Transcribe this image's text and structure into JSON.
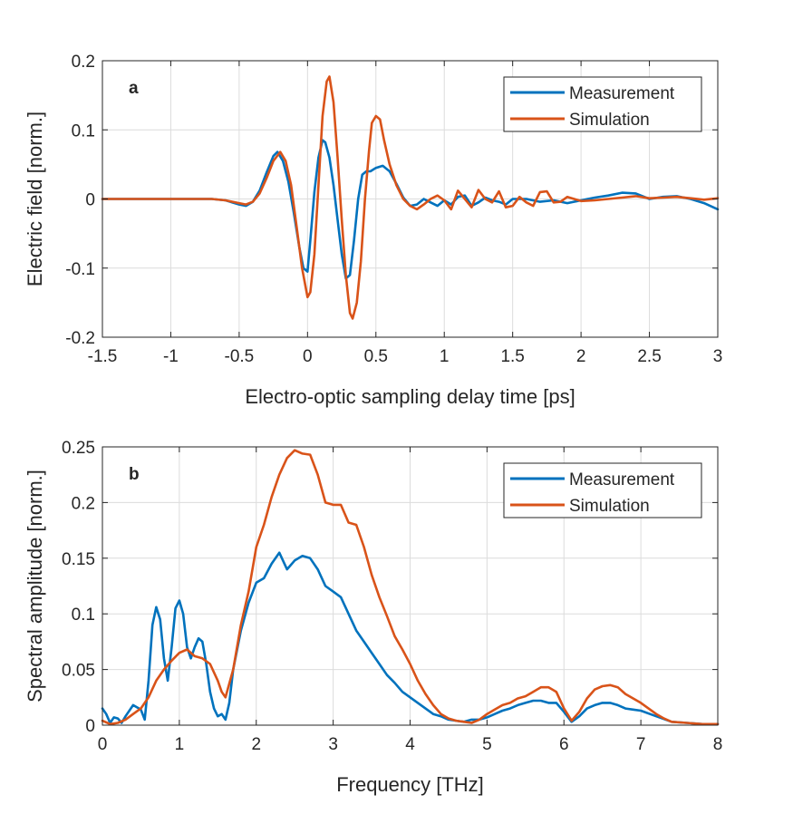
{
  "colors": {
    "measurement": "#0072BD",
    "simulation": "#D95319",
    "grid": "#dcdcdc",
    "axis": "#262626"
  },
  "chart_data": [
    {
      "type": "line",
      "panel_label": "a",
      "xlabel": "Electro-optic sampling delay time [ps]",
      "ylabel": "Electric field [norm.]",
      "xlim": [
        -1.5,
        3
      ],
      "ylim": [
        -0.2,
        0.2
      ],
      "xticks": [
        -1.5,
        -1,
        -0.5,
        0,
        0.5,
        1,
        1.5,
        2,
        2.5,
        3
      ],
      "xtick_labels": [
        "-1.5",
        "-1",
        "-0.5",
        "0",
        "0.5",
        "1",
        "1.5",
        "2",
        "2.5",
        "3"
      ],
      "yticks": [
        -0.2,
        -0.1,
        0,
        0.1,
        0.2
      ],
      "ytick_labels": [
        "-0.2",
        "-0.1",
        "0",
        "0.1",
        "0.2"
      ],
      "grid": true,
      "legend_position": "top-right",
      "series": [
        {
          "name": "Measurement",
          "color": "#0072BD",
          "x": [
            -1.5,
            -1.2,
            -0.9,
            -0.7,
            -0.6,
            -0.5,
            -0.45,
            -0.4,
            -0.35,
            -0.3,
            -0.25,
            -0.22,
            -0.18,
            -0.14,
            -0.1,
            -0.06,
            -0.03,
            0.0,
            0.02,
            0.05,
            0.08,
            0.11,
            0.13,
            0.16,
            0.19,
            0.22,
            0.25,
            0.28,
            0.31,
            0.34,
            0.37,
            0.4,
            0.43,
            0.46,
            0.5,
            0.55,
            0.6,
            0.65,
            0.7,
            0.75,
            0.8,
            0.85,
            0.9,
            0.95,
            1.0,
            1.05,
            1.1,
            1.15,
            1.2,
            1.25,
            1.3,
            1.35,
            1.4,
            1.45,
            1.5,
            1.6,
            1.7,
            1.8,
            1.9,
            2.0,
            2.1,
            2.2,
            2.3,
            2.4,
            2.5,
            2.6,
            2.7,
            2.8,
            2.9,
            3.0
          ],
          "y": [
            0.0,
            0.0,
            0.0,
            0.0,
            -0.002,
            -0.008,
            -0.01,
            -0.004,
            0.012,
            0.038,
            0.062,
            0.068,
            0.055,
            0.025,
            -0.02,
            -0.07,
            -0.1,
            -0.105,
            -0.06,
            0.01,
            0.06,
            0.085,
            0.082,
            0.06,
            0.02,
            -0.03,
            -0.08,
            -0.115,
            -0.11,
            -0.06,
            0.0,
            0.035,
            0.04,
            0.04,
            0.045,
            0.048,
            0.04,
            0.022,
            0.002,
            -0.01,
            -0.008,
            0.0,
            -0.005,
            -0.01,
            -0.002,
            -0.008,
            0.003,
            0.005,
            -0.01,
            -0.005,
            0.002,
            -0.002,
            -0.004,
            -0.008,
            0.0,
            0.0,
            -0.004,
            -0.002,
            -0.006,
            -0.002,
            0.002,
            0.005,
            0.009,
            0.008,
            0.0,
            0.003,
            0.004,
            0.0,
            -0.006,
            -0.015
          ]
        },
        {
          "name": "Simulation",
          "color": "#D95319",
          "x": [
            -1.5,
            -1.2,
            -0.9,
            -0.7,
            -0.6,
            -0.5,
            -0.45,
            -0.4,
            -0.35,
            -0.3,
            -0.25,
            -0.2,
            -0.16,
            -0.12,
            -0.08,
            -0.04,
            0.0,
            0.02,
            0.05,
            0.08,
            0.11,
            0.14,
            0.16,
            0.19,
            0.22,
            0.25,
            0.28,
            0.31,
            0.33,
            0.36,
            0.39,
            0.42,
            0.45,
            0.47,
            0.5,
            0.53,
            0.56,
            0.6,
            0.65,
            0.7,
            0.75,
            0.8,
            0.85,
            0.9,
            0.95,
            1.0,
            1.05,
            1.1,
            1.15,
            1.2,
            1.25,
            1.3,
            1.35,
            1.4,
            1.45,
            1.5,
            1.55,
            1.6,
            1.65,
            1.7,
            1.75,
            1.8,
            1.85,
            1.9,
            2.0,
            2.1,
            2.2,
            2.3,
            2.4,
            2.5,
            2.6,
            2.7,
            2.8,
            2.9,
            3.0
          ],
          "y": [
            0.0,
            0.0,
            0.0,
            0.0,
            -0.002,
            -0.006,
            -0.008,
            -0.004,
            0.008,
            0.03,
            0.055,
            0.068,
            0.055,
            0.02,
            -0.04,
            -0.1,
            -0.142,
            -0.135,
            -0.08,
            0.02,
            0.12,
            0.17,
            0.177,
            0.14,
            0.06,
            -0.03,
            -0.11,
            -0.165,
            -0.173,
            -0.15,
            -0.09,
            0.0,
            0.07,
            0.11,
            0.12,
            0.115,
            0.085,
            0.05,
            0.02,
            0.0,
            -0.01,
            -0.015,
            -0.008,
            0.0,
            0.005,
            -0.002,
            -0.015,
            0.012,
            0.0,
            -0.012,
            0.013,
            0.0,
            -0.005,
            0.011,
            -0.012,
            -0.01,
            0.003,
            -0.005,
            -0.01,
            0.01,
            0.011,
            -0.005,
            -0.004,
            0.003,
            -0.003,
            -0.002,
            0.0,
            0.002,
            0.004,
            0.001,
            0.002,
            0.003,
            0.001,
            -0.001,
            0.001
          ]
        }
      ]
    },
    {
      "type": "line",
      "panel_label": "b",
      "xlabel": "Frequency [THz]",
      "ylabel": "Spectral amplitude [norm.]",
      "xlim": [
        0,
        8
      ],
      "ylim": [
        0,
        0.25
      ],
      "xticks": [
        0,
        1,
        2,
        3,
        4,
        5,
        6,
        7,
        8
      ],
      "xtick_labels": [
        "0",
        "1",
        "2",
        "3",
        "4",
        "5",
        "6",
        "7",
        "8"
      ],
      "yticks": [
        0,
        0.05,
        0.1,
        0.15,
        0.2,
        0.25
      ],
      "ytick_labels": [
        "0",
        "0.05",
        "0.1",
        "0.15",
        "0.2",
        "0.25"
      ],
      "grid": true,
      "legend_position": "top-right",
      "series": [
        {
          "name": "Measurement",
          "color": "#0072BD",
          "x": [
            0.0,
            0.05,
            0.1,
            0.15,
            0.2,
            0.25,
            0.3,
            0.4,
            0.5,
            0.55,
            0.6,
            0.65,
            0.7,
            0.75,
            0.8,
            0.85,
            0.9,
            0.95,
            1.0,
            1.05,
            1.1,
            1.15,
            1.2,
            1.25,
            1.3,
            1.35,
            1.4,
            1.45,
            1.5,
            1.55,
            1.6,
            1.65,
            1.7,
            1.8,
            1.9,
            2.0,
            2.1,
            2.2,
            2.3,
            2.4,
            2.5,
            2.6,
            2.7,
            2.8,
            2.9,
            3.0,
            3.1,
            3.2,
            3.3,
            3.4,
            3.5,
            3.6,
            3.7,
            3.8,
            3.9,
            4.0,
            4.1,
            4.2,
            4.3,
            4.4,
            4.5,
            4.6,
            4.7,
            4.8,
            4.9,
            5.0,
            5.1,
            5.2,
            5.3,
            5.4,
            5.5,
            5.6,
            5.7,
            5.8,
            5.9,
            6.0,
            6.1,
            6.2,
            6.3,
            6.4,
            6.5,
            6.6,
            6.7,
            6.8,
            6.9,
            7.0,
            7.2,
            7.4,
            7.6,
            7.8,
            8.0
          ],
          "y": [
            0.015,
            0.01,
            0.002,
            0.007,
            0.006,
            0.002,
            0.008,
            0.018,
            0.014,
            0.005,
            0.04,
            0.09,
            0.106,
            0.095,
            0.06,
            0.04,
            0.07,
            0.105,
            0.112,
            0.1,
            0.07,
            0.06,
            0.07,
            0.078,
            0.075,
            0.055,
            0.03,
            0.015,
            0.008,
            0.01,
            0.005,
            0.02,
            0.05,
            0.085,
            0.11,
            0.128,
            0.132,
            0.145,
            0.155,
            0.14,
            0.148,
            0.152,
            0.15,
            0.14,
            0.125,
            0.12,
            0.115,
            0.1,
            0.085,
            0.075,
            0.065,
            0.055,
            0.045,
            0.038,
            0.03,
            0.025,
            0.02,
            0.015,
            0.01,
            0.008,
            0.005,
            0.004,
            0.003,
            0.005,
            0.005,
            0.007,
            0.01,
            0.013,
            0.015,
            0.018,
            0.02,
            0.022,
            0.022,
            0.02,
            0.02,
            0.012,
            0.003,
            0.008,
            0.015,
            0.018,
            0.02,
            0.02,
            0.018,
            0.015,
            0.014,
            0.013,
            0.008,
            0.003,
            0.002,
            0.001,
            0.001
          ]
        },
        {
          "name": "Simulation",
          "color": "#D95319",
          "x": [
            0.0,
            0.1,
            0.2,
            0.3,
            0.4,
            0.5,
            0.6,
            0.7,
            0.8,
            0.9,
            1.0,
            1.1,
            1.2,
            1.3,
            1.4,
            1.5,
            1.55,
            1.6,
            1.7,
            1.8,
            1.9,
            2.0,
            2.1,
            2.2,
            2.3,
            2.4,
            2.5,
            2.6,
            2.7,
            2.8,
            2.9,
            3.0,
            3.1,
            3.2,
            3.3,
            3.4,
            3.5,
            3.6,
            3.7,
            3.8,
            3.9,
            4.0,
            4.1,
            4.2,
            4.3,
            4.4,
            4.5,
            4.6,
            4.7,
            4.8,
            4.9,
            5.0,
            5.1,
            5.2,
            5.3,
            5.4,
            5.5,
            5.6,
            5.7,
            5.8,
            5.9,
            6.0,
            6.1,
            6.2,
            6.3,
            6.4,
            6.5,
            6.6,
            6.7,
            6.8,
            6.9,
            7.0,
            7.1,
            7.2,
            7.3,
            7.4,
            7.6,
            7.8,
            8.0
          ],
          "y": [
            0.004,
            0.001,
            0.002,
            0.005,
            0.01,
            0.015,
            0.025,
            0.04,
            0.05,
            0.058,
            0.065,
            0.068,
            0.062,
            0.06,
            0.055,
            0.04,
            0.03,
            0.025,
            0.05,
            0.09,
            0.12,
            0.16,
            0.18,
            0.205,
            0.225,
            0.24,
            0.247,
            0.244,
            0.243,
            0.225,
            0.2,
            0.198,
            0.198,
            0.182,
            0.18,
            0.16,
            0.135,
            0.115,
            0.098,
            0.08,
            0.068,
            0.055,
            0.04,
            0.028,
            0.018,
            0.01,
            0.006,
            0.004,
            0.003,
            0.002,
            0.005,
            0.01,
            0.014,
            0.018,
            0.02,
            0.024,
            0.026,
            0.03,
            0.034,
            0.034,
            0.03,
            0.015,
            0.004,
            0.012,
            0.024,
            0.032,
            0.035,
            0.036,
            0.034,
            0.028,
            0.024,
            0.02,
            0.015,
            0.01,
            0.006,
            0.003,
            0.002,
            0.001,
            0.001
          ]
        }
      ]
    }
  ]
}
